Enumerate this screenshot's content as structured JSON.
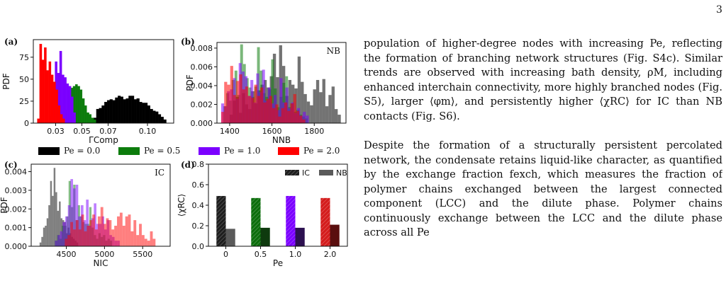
{
  "page_number": "3",
  "legend": [
    {
      "label": "Pe = 0.0",
      "color": "#000000"
    },
    {
      "label": "Pe = 0.5",
      "color": "#0c7c0c"
    },
    {
      "label": "Pe = 1.0",
      "color": "#7b00ff"
    },
    {
      "label": "Pe = 2.0",
      "color": "#ff0000"
    }
  ],
  "body_text": {
    "p1": "population of higher-degree nodes with increasing Pe, reflecting the formation of branching network structures (Fig. S4c). Similar trends are observed with increasing bath density, ρM, including enhanced interchain connectivity, more highly branched nodes (Fig. S5), larger ⟨φm⟩, and persistently higher ⟨χRC⟩ for IC than NB contacts (Fig. S6).",
    "p2": "Despite the formation of a structurally persistent percolated network, the condensate retains liquid-like character, as quantified by the exchange fraction fexch, which measures the fraction of polymer chains exchanged between the largest connected component (LCC) and the dilute phase. Polymer chains continuously exchange between the LCC and the dilute phase across all Pe"
  },
  "chart_data": [
    {
      "panel": "(a)",
      "type": "bar",
      "ylabel": "PDF",
      "xlabel": "ΓComp",
      "xticks": [
        "0.03",
        "0.05",
        "0.07",
        "0.10"
      ],
      "yticks": [
        "0",
        "25",
        "50",
        "75"
      ],
      "xlim": [
        0.013,
        0.12
      ],
      "ylim": [
        0,
        95
      ],
      "series": [
        {
          "name": "Pe = 2.0",
          "x_start": 0.016,
          "bin_width": 0.00175,
          "values": [
            5,
            90,
            72,
            86,
            60,
            70,
            55,
            47,
            38,
            20,
            10,
            5
          ]
        },
        {
          "name": "Pe = 1.0",
          "x_start": 0.026,
          "bin_width": 0.00175,
          "values": [
            8,
            45,
            70,
            57,
            82,
            55,
            52,
            45,
            42,
            30,
            12
          ]
        },
        {
          "name": "Pe = 0.5",
          "x_start": 0.038,
          "bin_width": 0.00175,
          "values": [
            15,
            38,
            40,
            42,
            44,
            42,
            38,
            28,
            20,
            12,
            10,
            6,
            4
          ]
        },
        {
          "name": "Pe = 0.0",
          "x_start": 0.059,
          "bin_width": 0.00205,
          "values": [
            6,
            16,
            17,
            20,
            24,
            26,
            27,
            26,
            29,
            31,
            30,
            27,
            28,
            31,
            31,
            27,
            28,
            24,
            23,
            23,
            20,
            16,
            14,
            13,
            10,
            7,
            4
          ]
        }
      ]
    },
    {
      "panel": "(b)",
      "type": "bar",
      "title": "NB",
      "ylabel": "PDF",
      "xlabel": "NNB",
      "xticks": [
        "1400",
        "1600",
        "1800"
      ],
      "yticks": [
        "0.000",
        "0.002",
        "0.004",
        "0.006",
        "0.008"
      ],
      "xlim": [
        1340,
        1950
      ],
      "ylim": [
        0,
        0.0086
      ],
      "series": [
        {
          "name": "Pe = 0.0",
          "x_start": 1400,
          "bin_width": 14.6,
          "values": [
            0.0009,
            0.0024,
            0.0028,
            0.0011,
            0.0032,
            0.002,
            0.0015,
            0.0034,
            0.0021,
            0.0035,
            0.0041,
            0.0046,
            0.0038,
            0.005,
            0.0074,
            0.0049,
            0.0083,
            0.0061,
            0.0029,
            0.0046,
            0.0041,
            0.0037,
            0.0071,
            0.0044,
            0.0031,
            0.0023,
            0.0019,
            0.0036,
            0.0046,
            0.0033,
            0.0047,
            0.0018,
            0.003,
            0.0039,
            0.0015,
            0.0009
          ]
        },
        {
          "name": "Pe = 0.5",
          "x_start": 1370,
          "bin_width": 13.3,
          "values": [
            0.0018,
            0.0032,
            0.0024,
            0.0046,
            0.0056,
            0.003,
            0.0084,
            0.0063,
            0.0048,
            0.0038,
            0.0028,
            0.0039,
            0.0081,
            0.0056,
            0.0032,
            0.0028,
            0.0036,
            0.0068,
            0.0037,
            0.0017,
            0.0028,
            0.0043,
            0.005,
            0.0017,
            0.0021,
            0.0012,
            0.0014,
            0.0009,
            0.0007,
            0.0005
          ]
        },
        {
          "name": "Pe = 1.0",
          "x_start": 1360,
          "bin_width": 13.8,
          "values": [
            0.0021,
            0.0018,
            0.0034,
            0.0036,
            0.0048,
            0.0026,
            0.0064,
            0.0055,
            0.005,
            0.0029,
            0.0046,
            0.0022,
            0.0053,
            0.0033,
            0.0057,
            0.0024,
            0.0038,
            0.0021,
            0.003,
            0.0014,
            0.0048,
            0.0022,
            0.0038,
            0.0016,
            0.0022,
            0.0011,
            0.0016,
            0.0008,
            0.0012,
            0.0008
          ]
        },
        {
          "name": "Pe = 2.0",
          "x_start": 1360,
          "bin_width": 14.2,
          "values": [
            0.0012,
            0.0044,
            0.0041,
            0.0061,
            0.003,
            0.0045,
            0.0052,
            0.0036,
            0.0039,
            0.0029,
            0.0027,
            0.0041,
            0.0029,
            0.0038,
            0.0022,
            0.0026,
            0.0029,
            0.0016,
            0.002,
            0.0007,
            0.0016,
            0.0022,
            0.0013,
            0.0021,
            0.0031,
            0.0013,
            0.0008,
            0.0004
          ]
        }
      ]
    },
    {
      "panel": "(c)",
      "type": "bar",
      "title": "IC",
      "ylabel": "PDF",
      "xlabel": "NIC",
      "xticks": [
        "4500",
        "5000",
        "5500"
      ],
      "yticks": [
        "0.000",
        "0.001",
        "0.002",
        "0.003",
        "0.004"
      ],
      "xlim": [
        4040,
        5860
      ],
      "ylim": [
        0,
        0.0044
      ],
      "series": [
        {
          "name": "Pe = 0.0",
          "x_start": 4150,
          "bin_width": 23,
          "values": [
            0.0002,
            0.0005,
            0.001,
            0.0011,
            0.0015,
            0.0022,
            0.0035,
            0.0027,
            0.0042,
            0.0029,
            0.0019,
            0.0024,
            0.0015,
            0.0014,
            0.0013,
            0.0007,
            0.001,
            0.0007,
            0.0005,
            0.0004,
            0.0003,
            0.0002
          ]
        },
        {
          "name": "Pe = 0.5",
          "x_start": 4350,
          "bin_width": 30,
          "values": [
            0.0003,
            0.0006,
            0.0004,
            0.0011,
            0.0011,
            0.0016,
            0.0035,
            0.0021,
            0.0033,
            0.0014,
            0.0022,
            0.0016,
            0.0013,
            0.0012,
            0.0012,
            0.0021,
            0.001,
            0.0006,
            0.0004,
            0.0007,
            0.0005,
            0.0006,
            0.0003,
            0.0004,
            0.0003
          ]
        },
        {
          "name": "Pe = 1.0",
          "x_start": 4350,
          "bin_width": 34,
          "values": [
            0.0003,
            0.0006,
            0.0008,
            0.0013,
            0.0016,
            0.0022,
            0.0036,
            0.0031,
            0.0033,
            0.0016,
            0.0022,
            0.0014,
            0.0025,
            0.0011,
            0.0015,
            0.0023,
            0.0012,
            0.0012,
            0.0016,
            0.0009,
            0.0014,
            0.0006,
            0.0005,
            0.0003,
            0.0003
          ]
        },
        {
          "name": "Pe = 2.0",
          "x_start": 4480,
          "bin_width": 36,
          "values": [
            0.0004,
            0.0006,
            0.0013,
            0.0009,
            0.0014,
            0.0009,
            0.0017,
            0.0008,
            0.0011,
            0.0014,
            0.0017,
            0.0009,
            0.0016,
            0.0021,
            0.0012,
            0.0015,
            0.0014,
            0.0009,
            0.0011,
            0.0016,
            0.0018,
            0.0011,
            0.0016,
            0.0017,
            0.0008,
            0.0014,
            0.0006,
            0.0012,
            0.0006,
            0.0004,
            0.0003,
            0.0008,
            0.0004
          ]
        }
      ]
    },
    {
      "panel": "(d)",
      "type": "bar",
      "ylabel": "⟨χRC⟩",
      "xlabel": "Pe",
      "categories": [
        "0",
        "0.5",
        "1.0",
        "2.0"
      ],
      "yticks": [
        "0.0",
        "0.2",
        "0.4",
        "0.6",
        "0.8"
      ],
      "ylim": [
        0,
        0.8
      ],
      "legend_items": [
        "IC",
        "NB"
      ],
      "series": [
        {
          "name": "IC",
          "values": [
            0.49,
            0.47,
            0.49,
            0.47
          ]
        },
        {
          "name": "NB",
          "values": [
            0.17,
            0.18,
            0.18,
            0.21
          ]
        }
      ]
    }
  ]
}
